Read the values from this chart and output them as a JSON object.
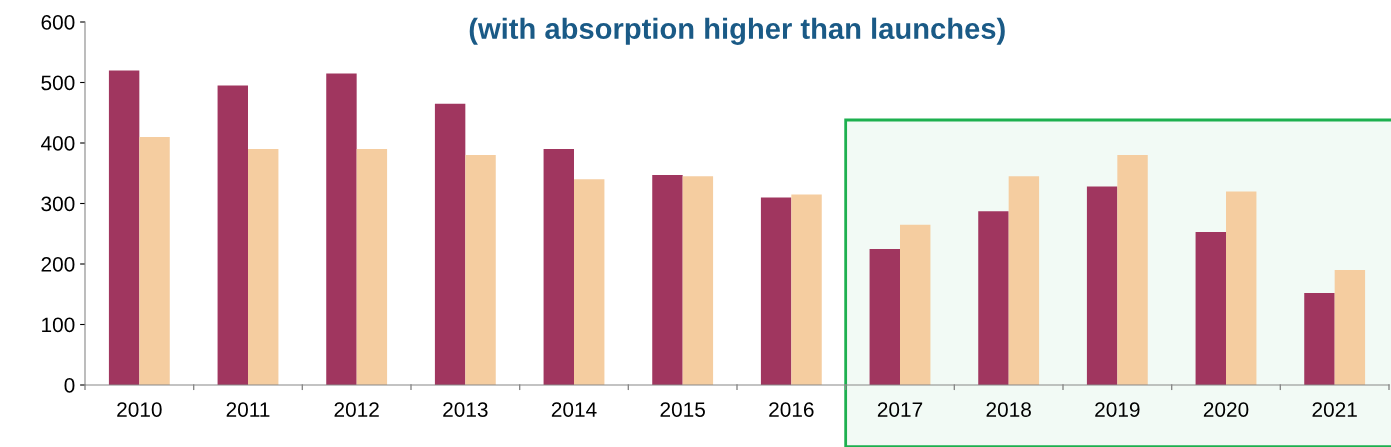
{
  "chart_data": {
    "type": "bar",
    "title": "(with absorption higher than launches)",
    "categories": [
      "2010",
      "2011",
      "2012",
      "2013",
      "2014",
      "2015",
      "2016",
      "2017",
      "2018",
      "2019",
      "2020",
      "2021"
    ],
    "series": [
      {
        "color": "#a0365f",
        "values": [
          520,
          495,
          515,
          465,
          390,
          347,
          310,
          225,
          287,
          328,
          253,
          152
        ]
      },
      {
        "color": "#f5cda0",
        "values": [
          410,
          390,
          390,
          380,
          340,
          345,
          315,
          265,
          345,
          380,
          320,
          190
        ]
      }
    ],
    "ylim": [
      0,
      600
    ],
    "yticks": [
      0,
      100,
      200,
      300,
      400,
      500,
      600
    ],
    "grid": false,
    "legend": false,
    "bands": [
      {
        "axis": "x",
        "from": "2017",
        "to": "2021",
        "color": "#1db04f"
      }
    ]
  }
}
